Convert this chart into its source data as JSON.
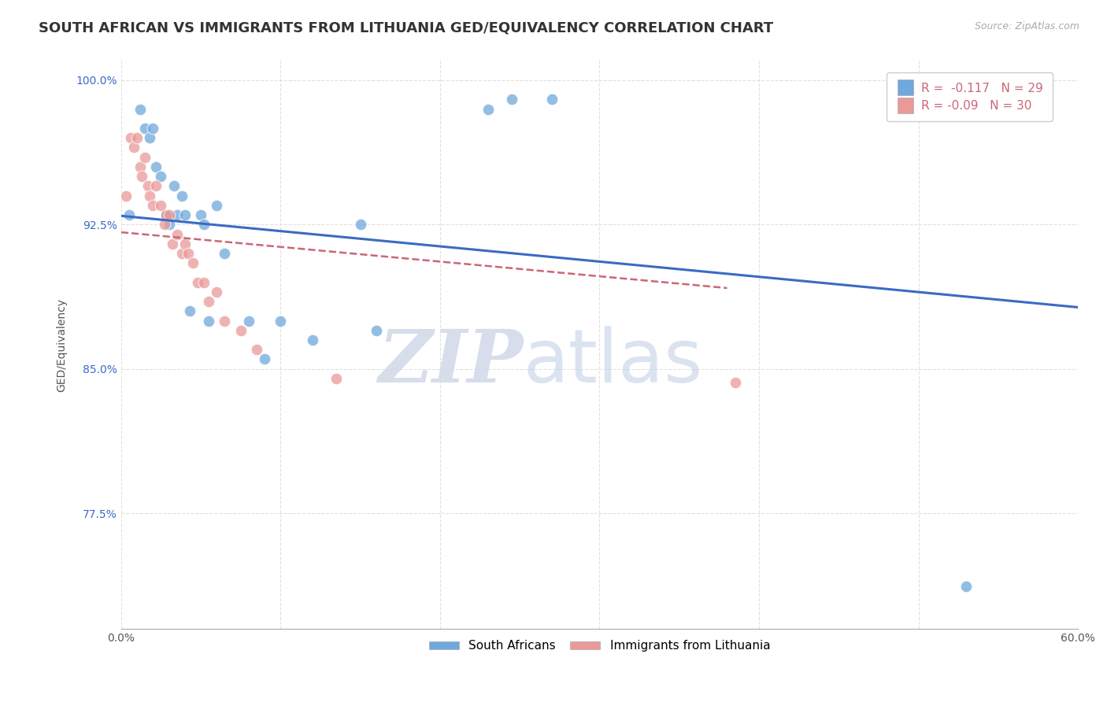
{
  "title": "SOUTH AFRICAN VS IMMIGRANTS FROM LITHUANIA GED/EQUIVALENCY CORRELATION CHART",
  "source": "Source: ZipAtlas.com",
  "ylabel": "GED/Equivalency",
  "xlim": [
    0.0,
    0.6
  ],
  "ylim": [
    0.715,
    1.01
  ],
  "xticks": [
    0.0,
    0.1,
    0.2,
    0.3,
    0.4,
    0.5,
    0.6
  ],
  "xticklabels": [
    "0.0%",
    "",
    "",
    "",
    "",
    "",
    "60.0%"
  ],
  "ytick_positions": [
    0.775,
    0.85,
    0.925,
    1.0
  ],
  "ytick_labels": [
    "77.5%",
    "85.0%",
    "92.5%",
    "100.0%"
  ],
  "south_african_R": -0.117,
  "south_african_N": 29,
  "lithuania_R": -0.09,
  "lithuania_N": 30,
  "blue_color": "#6fa8dc",
  "pink_color": "#ea9999",
  "blue_line_color": "#3a6bc4",
  "pink_line_color": "#cc6677",
  "legend_label_blue": "South Africans",
  "legend_label_pink": "Immigrants from Lithuania",
  "blue_points_x": [
    0.005,
    0.012,
    0.015,
    0.018,
    0.02,
    0.022,
    0.025,
    0.028,
    0.03,
    0.033,
    0.035,
    0.038,
    0.04,
    0.043,
    0.05,
    0.052,
    0.055,
    0.06,
    0.065,
    0.08,
    0.09,
    0.1,
    0.12,
    0.15,
    0.16,
    0.23,
    0.245,
    0.27,
    0.53
  ],
  "blue_points_y": [
    0.93,
    0.985,
    0.975,
    0.97,
    0.975,
    0.955,
    0.95,
    0.93,
    0.925,
    0.945,
    0.93,
    0.94,
    0.93,
    0.88,
    0.93,
    0.925,
    0.875,
    0.935,
    0.91,
    0.875,
    0.855,
    0.875,
    0.865,
    0.925,
    0.87,
    0.985,
    0.99,
    0.99,
    0.737
  ],
  "pink_points_x": [
    0.003,
    0.006,
    0.008,
    0.01,
    0.012,
    0.013,
    0.015,
    0.017,
    0.018,
    0.02,
    0.022,
    0.025,
    0.027,
    0.028,
    0.03,
    0.032,
    0.035,
    0.038,
    0.04,
    0.042,
    0.045,
    0.048,
    0.052,
    0.055,
    0.06,
    0.065,
    0.075,
    0.085,
    0.135,
    0.385
  ],
  "pink_points_y": [
    0.94,
    0.97,
    0.965,
    0.97,
    0.955,
    0.95,
    0.96,
    0.945,
    0.94,
    0.935,
    0.945,
    0.935,
    0.925,
    0.93,
    0.93,
    0.915,
    0.92,
    0.91,
    0.915,
    0.91,
    0.905,
    0.895,
    0.895,
    0.885,
    0.89,
    0.875,
    0.87,
    0.86,
    0.845,
    0.843
  ],
  "blue_line_x0": 0.0,
  "blue_line_y0": 0.9295,
  "blue_line_x1": 0.6,
  "blue_line_y1": 0.882,
  "pink_line_x0": 0.0,
  "pink_line_y0": 0.921,
  "pink_line_x1": 0.38,
  "pink_line_y1": 0.892,
  "watermark_zip": "ZIP",
  "watermark_atlas": "atlas",
  "title_fontsize": 13,
  "axis_label_fontsize": 10,
  "tick_fontsize": 10,
  "source_fontsize": 9,
  "legend_fontsize": 11,
  "marker_size": 110,
  "background_color": "#ffffff",
  "grid_color": "#e0e0e0"
}
